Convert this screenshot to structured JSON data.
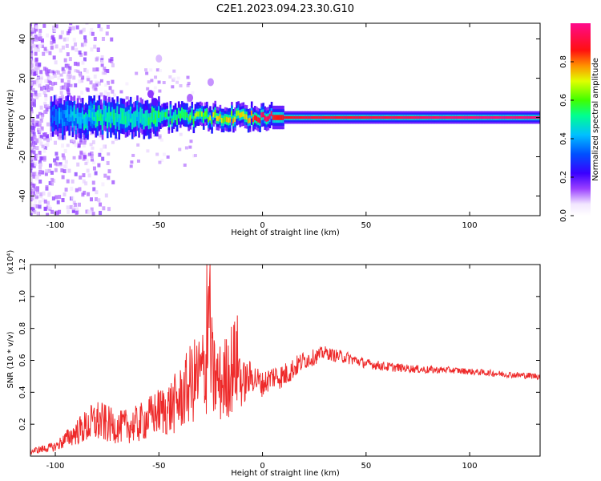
{
  "title": "C2E1.2023.094.23.30.G10",
  "colorbar": {
    "label": "Normalized spectral amplitude",
    "ticks": [
      "0.0",
      "0.2",
      "0.4",
      "0.6",
      "0.8"
    ],
    "tick_values": [
      0.0,
      0.2,
      0.4,
      0.6,
      0.8
    ],
    "range": [
      0,
      1
    ],
    "colors": [
      "#ffffff",
      "#f0e6ff",
      "#8a2be2",
      "#3300ff",
      "#0044ff",
      "#00bfff",
      "#00ff66",
      "#7fff00",
      "#ffff00",
      "#ff7f00",
      "#ff0000",
      "#ff1493"
    ]
  },
  "chart_data": [
    {
      "type": "heatmap",
      "title": "C2E1.2023.094.23.30.G10",
      "xlabel": "Height of straight line (km)",
      "ylabel": "Frequency (Hz)",
      "xlim": [
        -112,
        134
      ],
      "ylim": [
        -50,
        48
      ],
      "xticks": [
        -100,
        -50,
        0,
        50,
        100
      ],
      "yticks": [
        -40,
        -20,
        0,
        20,
        40
      ],
      "colorbar_label": "Normalized spectral amplitude",
      "ridge": {
        "frequency_hz": 0,
        "amplitude_by_height": [
          {
            "x": -110,
            "amp": 0.2
          },
          {
            "x": -95,
            "amp": 0.35
          },
          {
            "x": -80,
            "amp": 0.45
          },
          {
            "x": -60,
            "amp": 0.45
          },
          {
            "x": -45,
            "amp": 0.5
          },
          {
            "x": -30,
            "amp": 0.6
          },
          {
            "x": -10,
            "amp": 0.7
          },
          {
            "x": 0,
            "amp": 0.9
          },
          {
            "x": 5,
            "amp": 0.85
          },
          {
            "x": 20,
            "amp": 0.9
          },
          {
            "x": 40,
            "amp": 0.9
          },
          {
            "x": 60,
            "amp": 0.92
          },
          {
            "x": 80,
            "amp": 0.95
          },
          {
            "x": 100,
            "amp": 0.97
          },
          {
            "x": 134,
            "amp": 0.97
          }
        ]
      }
    },
    {
      "type": "line",
      "xlabel": "Height of straight line (km)",
      "ylabel": "SNR (10 * v/v)",
      "y_scale_note": "(x10⁴)",
      "xlim": [
        -112,
        134
      ],
      "ylim": [
        0,
        1.2
      ],
      "xticks": [
        -100,
        -50,
        0,
        50,
        100
      ],
      "yticks": [
        0.2,
        0.4,
        0.6,
        0.8,
        1.0,
        1.2
      ],
      "color": "#ff2020",
      "series": [
        {
          "x": [
            -112,
            -100,
            -90,
            -80,
            -70,
            -60,
            -50,
            -45,
            -40,
            -35,
            -30,
            -27,
            -26,
            -24,
            -20,
            -15,
            -12,
            -10,
            -5,
            0,
            5,
            10,
            15,
            20,
            25,
            30,
            35,
            40,
            50,
            60,
            70,
            80,
            90,
            100,
            110,
            120,
            134
          ],
          "y": [
            0.03,
            0.06,
            0.15,
            0.22,
            0.18,
            0.2,
            0.28,
            0.3,
            0.35,
            0.45,
            0.5,
            0.55,
            0.7,
            0.5,
            0.45,
            0.55,
            0.6,
            0.45,
            0.5,
            0.45,
            0.5,
            0.5,
            0.55,
            0.6,
            0.62,
            0.65,
            0.63,
            0.62,
            0.58,
            0.56,
            0.55,
            0.54,
            0.54,
            0.53,
            0.52,
            0.51,
            0.5
          ],
          "spread": [
            0.02,
            0.03,
            0.08,
            0.14,
            0.1,
            0.12,
            0.15,
            0.18,
            0.2,
            0.25,
            0.3,
            0.3,
            0.5,
            0.3,
            0.25,
            0.3,
            0.3,
            0.15,
            0.1,
            0.08,
            0.08,
            0.08,
            0.07,
            0.06,
            0.05,
            0.04,
            0.04,
            0.04,
            0.03,
            0.03,
            0.025,
            0.025,
            0.02,
            0.02,
            0.02,
            0.02,
            0.02
          ]
        }
      ]
    }
  ]
}
